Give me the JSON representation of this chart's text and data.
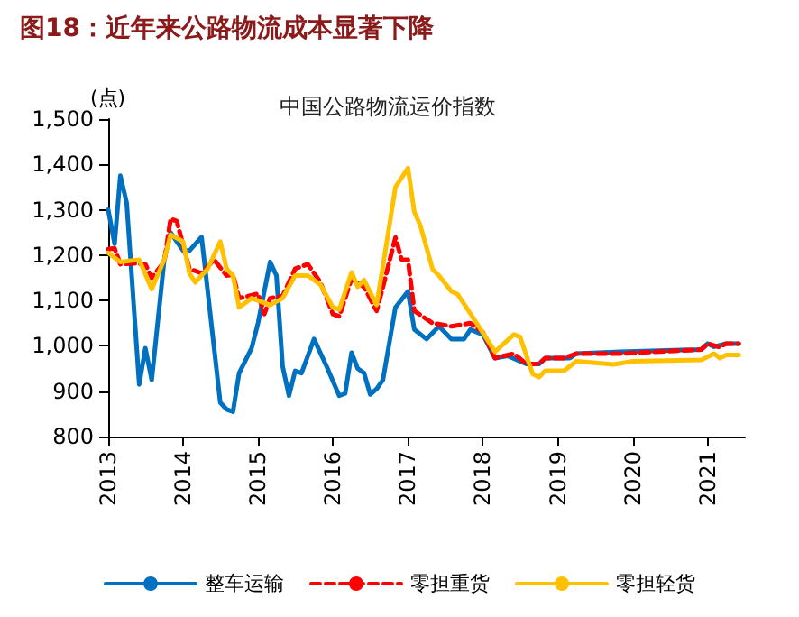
{
  "chart_data": {
    "type": "line",
    "title": "图18：近年来公路物流成本显著下降",
    "subtitle": "中国公路物流运价指数",
    "ylabel": "(点)",
    "xlim": [
      "2013-01",
      "2021-07"
    ],
    "xticks": [
      "2013",
      "2014",
      "2015",
      "2016",
      "2017",
      "2018",
      "2019",
      "2020",
      "2021"
    ],
    "ylim": [
      800,
      1500
    ],
    "yticks": [
      {
        "value": 800,
        "label": "800"
      },
      {
        "value": 900,
        "label": "900"
      },
      {
        "value": 1000,
        "label": "1,000"
      },
      {
        "value": 1100,
        "label": "1,100"
      },
      {
        "value": 1200,
        "label": "1,200"
      },
      {
        "value": 1300,
        "label": "1,300"
      },
      {
        "value": 1400,
        "label": "1,400"
      },
      {
        "value": 1500,
        "label": "1,500"
      }
    ],
    "grid": false,
    "legend": "bottom",
    "marker": "none",
    "series": [
      {
        "name": "整车运输",
        "color": "#0070c0",
        "line_style": "solid",
        "x": [
          "2013-01",
          "2013-02",
          "2013-03",
          "2013-04",
          "2013-06",
          "2013-07",
          "2013-08",
          "2013-10",
          "2013-11",
          "2014-01",
          "2014-02",
          "2014-04",
          "2014-07",
          "2014-08",
          "2014-09",
          "2014-10",
          "2014-12",
          "2015-01",
          "2015-03",
          "2015-04",
          "2015-05",
          "2015-06",
          "2015-07",
          "2015-08",
          "2015-10",
          "2015-12",
          "2016-02",
          "2016-03",
          "2016-04",
          "2016-05",
          "2016-06",
          "2016-07",
          "2016-08",
          "2016-09",
          "2016-11",
          "2017-01",
          "2017-02",
          "2017-04",
          "2017-06",
          "2017-08",
          "2017-10",
          "2017-11",
          "2018-01",
          "2018-03",
          "2018-05",
          "2018-08",
          "2018-10",
          "2018-11",
          "2019-03",
          "2019-04",
          "2019-11",
          "2020-12",
          "2021-01",
          "2021-02",
          "2021-04",
          "2021-06"
        ],
        "values": [
          1300,
          1225,
          1375,
          1315,
          915,
          995,
          925,
          1190,
          1250,
          1210,
          1210,
          1240,
          875,
          860,
          855,
          940,
          995,
          1050,
          1185,
          1155,
          955,
          890,
          945,
          940,
          1015,
          955,
          890,
          895,
          985,
          950,
          940,
          893,
          905,
          925,
          1085,
          1120,
          1036,
          1015,
          1043,
          1015,
          1015,
          1036,
          1025,
          973,
          978,
          960,
          960,
          973,
          973,
          983,
          987,
          992,
          1005,
          998,
          1005,
          1005
        ]
      },
      {
        "name": "零担重货",
        "color": "#ff0000",
        "line_style": "dashed",
        "x": [
          "2013-01",
          "2013-02",
          "2013-03",
          "2013-05",
          "2013-07",
          "2013-08",
          "2013-10",
          "2013-11",
          "2013-12",
          "2014-02",
          "2014-04",
          "2014-06",
          "2014-08",
          "2014-09",
          "2014-10",
          "2015-01",
          "2015-02",
          "2015-03",
          "2015-05",
          "2015-07",
          "2015-09",
          "2015-11",
          "2016-01",
          "2016-02",
          "2016-04",
          "2016-06",
          "2016-08",
          "2016-09",
          "2016-11",
          "2016-12",
          "2017-01",
          "2017-02",
          "2017-05",
          "2017-08",
          "2017-11",
          "2018-01",
          "2018-03",
          "2018-06",
          "2018-08",
          "2018-10",
          "2018-11",
          "2019-02",
          "2019-04",
          "2019-11",
          "2020-12",
          "2021-01",
          "2021-03",
          "2021-04",
          "2021-06"
        ],
        "values": [
          1213,
          1215,
          1180,
          1182,
          1180,
          1150,
          1185,
          1280,
          1275,
          1170,
          1160,
          1190,
          1155,
          1157,
          1105,
          1115,
          1070,
          1105,
          1110,
          1170,
          1180,
          1140,
          1070,
          1065,
          1148,
          1130,
          1077,
          1130,
          1239,
          1190,
          1190,
          1077,
          1050,
          1043,
          1050,
          1030,
          973,
          983,
          960,
          960,
          973,
          973,
          983,
          983,
          992,
          1005,
          997,
          1005,
          1005
        ]
      },
      {
        "name": "零担轻货",
        "color": "#ffc000",
        "line_style": "solid",
        "x": [
          "2013-01",
          "2013-03",
          "2013-06",
          "2013-08",
          "2013-10",
          "2013-11",
          "2014-01",
          "2014-02",
          "2014-03",
          "2014-05",
          "2014-07",
          "2014-08",
          "2014-09",
          "2014-10",
          "2014-12",
          "2015-03",
          "2015-05",
          "2015-07",
          "2015-09",
          "2015-11",
          "2016-01",
          "2016-02",
          "2016-04",
          "2016-05",
          "2016-06",
          "2016-08",
          "2016-09",
          "2016-11",
          "2017-01",
          "2017-02",
          "2017-03",
          "2017-05",
          "2017-06",
          "2017-08",
          "2017-09",
          "2018-01",
          "2018-03",
          "2018-06",
          "2018-07",
          "2018-09",
          "2018-10",
          "2018-11",
          "2019-02",
          "2019-04",
          "2019-10",
          "2020-01",
          "2020-12",
          "2021-02",
          "2021-03",
          "2021-04",
          "2021-06"
        ],
        "values": [
          1205,
          1185,
          1190,
          1125,
          1190,
          1245,
          1230,
          1160,
          1140,
          1170,
          1230,
          1170,
          1155,
          1085,
          1105,
          1090,
          1105,
          1155,
          1155,
          1135,
          1085,
          1080,
          1162,
          1130,
          1145,
          1090,
          1176,
          1350,
          1392,
          1295,
          1267,
          1169,
          1155,
          1120,
          1113,
          1029,
          987,
          1025,
          1020,
          938,
          931,
          945,
          945,
          966,
          959,
          966,
          969,
          983,
          973,
          980,
          980
        ]
      }
    ]
  }
}
